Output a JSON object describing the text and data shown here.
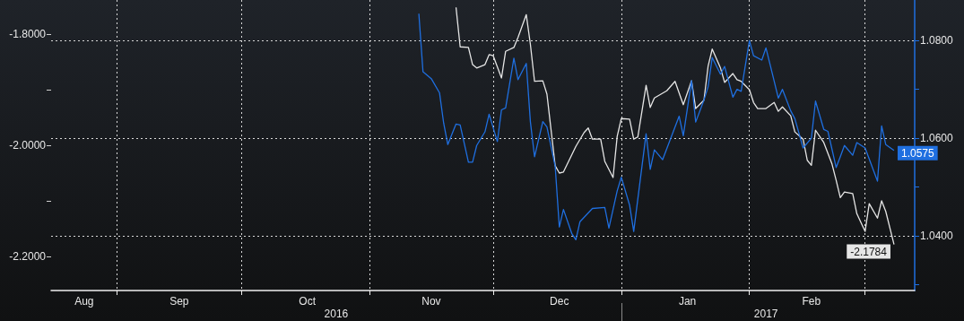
{
  "chart_data": {
    "type": "line",
    "xlim": [
      "2016-08-16",
      "2017-03-13"
    ],
    "xticks": [
      {
        "value": "2016-09-01",
        "label": null
      },
      {
        "value": "2016-10-01",
        "label": null
      },
      {
        "value": "2016-11-01",
        "label": null
      },
      {
        "value": "2016-12-01",
        "label": null
      },
      {
        "value": "2017-01-01",
        "label": null
      },
      {
        "value": "2017-02-01",
        "label": null
      },
      {
        "value": "2017-03-01",
        "label": null
      },
      {
        "value": "2016-08-24",
        "label": "Aug"
      },
      {
        "value": "2016-09-16",
        "label": "Sep"
      },
      {
        "value": "2016-10-17",
        "label": "Oct"
      },
      {
        "value": "2016-11-16",
        "label": "Nov"
      },
      {
        "value": "2016-12-17",
        "label": "Dec"
      },
      {
        "value": "2017-01-17",
        "label": "Jan"
      },
      {
        "value": "2017-02-16",
        "label": "Feb"
      }
    ],
    "x2lim": [
      "2016-08-16",
      "2017-03-13"
    ],
    "x2ticks": [
      {
        "value": "2017-01-01",
        "label": null
      },
      {
        "value": "2016-10-24",
        "label": "2016"
      },
      {
        "value": "2017-02-05",
        "label": "2017"
      }
    ],
    "ylim": [
      -2.2613,
      -1.7387
    ],
    "yticks": [
      {
        "value": -1.8,
        "label": "-1.8000"
      },
      {
        "value": -1.9,
        "label": null
      },
      {
        "value": -2.0,
        "label": "-2.0000"
      },
      {
        "value": -2.1,
        "label": null
      },
      {
        "value": -2.2,
        "label": "-2.2000"
      }
    ],
    "y2lim": [
      1.0288,
      1.0883
    ],
    "y2ticks": [
      {
        "value": 1.03,
        "label": null
      },
      {
        "value": 1.04,
        "label": "1.0400"
      },
      {
        "value": 1.05,
        "label": null
      },
      {
        "value": 1.06,
        "label": "1.0600"
      },
      {
        "value": 1.07,
        "label": null
      },
      {
        "value": 1.08,
        "label": "1.0800"
      }
    ],
    "grid": true,
    "marker": "none",
    "line_style": "solid",
    "series": [
      {
        "color": "#e6e6e6",
        "x": [
          "2016-11-22",
          "2016-11-23",
          "2016-11-25",
          "2016-11-26",
          "2016-11-27",
          "2016-11-29",
          "2016-11-30",
          "2016-12-01",
          "2016-12-03",
          "2016-12-04",
          "2016-12-06",
          "2016-12-07",
          "2016-12-09",
          "2016-12-10",
          "2016-12-11",
          "2016-12-13",
          "2016-12-14",
          "2016-12-16",
          "2016-12-17",
          "2016-12-18",
          "2016-12-21",
          "2016-12-23",
          "2016-12-24",
          "2016-12-25",
          "2016-12-27",
          "2016-12-28",
          "2016-12-30",
          "2016-12-31",
          "2017-01-01",
          "2017-01-03",
          "2017-01-04",
          "2017-01-05",
          "2017-01-07",
          "2017-01-08",
          "2017-01-09",
          "2017-01-12",
          "2017-01-14",
          "2017-01-16",
          "2017-01-18",
          "2017-01-19",
          "2017-01-21",
          "2017-01-22",
          "2017-01-23",
          "2017-01-25",
          "2017-01-26",
          "2017-01-28",
          "2017-01-29",
          "2017-01-30",
          "2017-02-01",
          "2017-02-02",
          "2017-02-03",
          "2017-02-05",
          "2017-02-07",
          "2017-02-08",
          "2017-02-09",
          "2017-02-11",
          "2017-02-12",
          "2017-02-14",
          "2017-02-15",
          "2017-02-16",
          "2017-02-17",
          "2017-02-19",
          "2017-02-21",
          "2017-02-22",
          "2017-02-23",
          "2017-02-24",
          "2017-02-26",
          "2017-02-27",
          "2017-03-01",
          "2017-03-02",
          "2017-03-04",
          "2017-03-05",
          "2017-03-06",
          "2017-03-08"
        ],
        "values": [
          -1.752,
          -1.823,
          -1.824,
          -1.855,
          -1.861,
          -1.855,
          -1.837,
          -1.839,
          -1.879,
          -1.831,
          -1.824,
          -1.806,
          -1.765,
          -1.819,
          -1.885,
          -1.884,
          -1.908,
          -2.037,
          -2.05,
          -2.048,
          -2.002,
          -1.977,
          -1.969,
          -1.989,
          -1.989,
          -2.029,
          -2.058,
          -1.984,
          -1.952,
          -1.953,
          -1.989,
          -1.985,
          -1.892,
          -1.932,
          -1.915,
          -1.902,
          -1.885,
          -1.927,
          -1.884,
          -1.934,
          -1.919,
          -1.858,
          -1.827,
          -1.861,
          -1.887,
          -1.871,
          -1.882,
          -1.885,
          -1.9,
          -1.923,
          -1.934,
          -1.934,
          -1.923,
          -1.939,
          -1.931,
          -1.947,
          -1.976,
          -1.989,
          -2.027,
          -2.036,
          -1.973,
          -1.995,
          -2.034,
          -2.063,
          -2.094,
          -2.084,
          -2.087,
          -2.123,
          -2.155,
          -2.105,
          -2.131,
          -2.1,
          -2.119,
          -2.1784
        ],
        "value_labels": [
          null,
          null,
          null,
          null,
          null,
          null,
          null,
          null,
          null,
          null,
          null,
          null,
          null,
          null,
          null,
          null,
          null,
          null,
          null,
          null,
          null,
          null,
          null,
          null,
          null,
          null,
          null,
          null,
          null,
          null,
          null,
          null,
          null,
          null,
          null,
          null,
          null,
          null,
          null,
          null,
          null,
          null,
          null,
          null,
          null,
          null,
          null,
          null,
          null,
          null,
          null,
          null,
          null,
          null,
          null,
          null,
          null,
          null,
          null,
          null,
          null,
          null,
          null,
          null,
          null,
          null,
          null,
          null,
          null,
          null,
          null,
          null,
          null,
          "-2.1784"
        ]
      },
      {
        "color": "#1f6fe0",
        "axis": "y2",
        "x": [
          "2016-11-13",
          "2016-11-14",
          "2016-11-16",
          "2016-11-18",
          "2016-11-19",
          "2016-11-20",
          "2016-11-22",
          "2016-11-23",
          "2016-11-25",
          "2016-11-26",
          "2016-11-27",
          "2016-11-29",
          "2016-11-30",
          "2016-12-02",
          "2016-12-03",
          "2016-12-04",
          "2016-12-06",
          "2016-12-07",
          "2016-12-09",
          "2016-12-10",
          "2016-12-11",
          "2016-12-13",
          "2016-12-14",
          "2016-12-16",
          "2016-12-17",
          "2016-12-18",
          "2016-12-20",
          "2016-12-21",
          "2016-12-22",
          "2016-12-25",
          "2016-12-28",
          "2016-12-29",
          "2016-12-31",
          "2017-01-01",
          "2017-01-03",
          "2017-01-04",
          "2017-01-07",
          "2017-01-08",
          "2017-01-09",
          "2017-01-11",
          "2017-01-15",
          "2017-01-16",
          "2017-01-18",
          "2017-01-19",
          "2017-01-21",
          "2017-01-22",
          "2017-01-23",
          "2017-01-25",
          "2017-01-26",
          "2017-01-28",
          "2017-01-29",
          "2017-01-30",
          "2017-02-01",
          "2017-02-02",
          "2017-02-04",
          "2017-02-05",
          "2017-02-06",
          "2017-02-08",
          "2017-02-09",
          "2017-02-11",
          "2017-02-12",
          "2017-02-14",
          "2017-02-16",
          "2017-02-17",
          "2017-02-19",
          "2017-02-20",
          "2017-02-22",
          "2017-02-23",
          "2017-02-24",
          "2017-02-26",
          "2017-02-27",
          "2017-03-01",
          "2017-03-04",
          "2017-03-05",
          "2017-03-06",
          "2017-03-08"
        ],
        "values": [
          1.0855,
          1.0736,
          1.0722,
          1.0693,
          1.0631,
          1.0587,
          1.0629,
          1.0627,
          1.0551,
          1.0551,
          1.0585,
          1.0613,
          1.0649,
          1.0593,
          1.0658,
          1.0662,
          1.0764,
          1.072,
          1.0753,
          1.0633,
          1.0562,
          1.0634,
          1.0623,
          1.0542,
          1.0418,
          1.0454,
          1.0405,
          1.0392,
          1.0429,
          1.0456,
          1.0458,
          1.0416,
          1.0492,
          1.052,
          1.0463,
          1.0409,
          1.0609,
          1.0536,
          1.0576,
          1.0556,
          1.0645,
          1.0605,
          1.0718,
          1.0633,
          1.0678,
          1.0705,
          1.0765,
          1.0731,
          1.0747,
          1.0684,
          1.07,
          1.0696,
          1.08,
          1.0769,
          1.076,
          1.0785,
          1.0751,
          1.0682,
          1.07,
          1.0656,
          1.064,
          1.058,
          1.06,
          1.0676,
          1.0618,
          1.0614,
          1.054,
          1.0562,
          1.0585,
          1.0565,
          1.0591,
          1.058,
          1.0512,
          1.0625,
          1.0587,
          1.0575
        ],
        "value_labels": [
          null,
          null,
          null,
          null,
          null,
          null,
          null,
          null,
          null,
          null,
          null,
          null,
          null,
          null,
          null,
          null,
          null,
          null,
          null,
          null,
          null,
          null,
          null,
          null,
          null,
          null,
          null,
          null,
          null,
          null,
          null,
          null,
          null,
          null,
          null,
          null,
          null,
          null,
          null,
          null,
          null,
          null,
          null,
          null,
          null,
          null,
          null,
          null,
          null,
          null,
          null,
          null,
          null,
          null,
          null,
          null,
          null,
          null,
          null,
          null,
          null,
          null,
          null,
          null,
          null,
          null,
          null,
          null,
          null,
          null,
          null,
          null,
          null,
          null,
          null,
          "1.0575"
        ]
      }
    ]
  }
}
